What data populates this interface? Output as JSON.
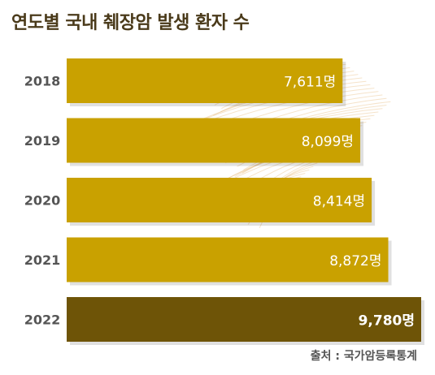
{
  "title": "연도별 국내 췌장암 발생 환자 수",
  "source": "출처 : 국가암등록통계",
  "colors": {
    "bar": "#c9a100",
    "highlight": "#6e5407",
    "label": "#ffffff",
    "year": "#555555",
    "decor": "#e9c08a"
  },
  "chart_data": {
    "type": "bar",
    "orientation": "horizontal",
    "categories": [
      "2018",
      "2019",
      "2020",
      "2021",
      "2022"
    ],
    "values": [
      7611,
      8099,
      8414,
      8872,
      9780
    ],
    "value_labels": [
      "7,611명",
      "8,099명",
      "8,414명",
      "8,872명",
      "9,780명"
    ],
    "highlight_category": "2022",
    "title": "연도별 국내 췌장암 발생 환자 수"
  }
}
